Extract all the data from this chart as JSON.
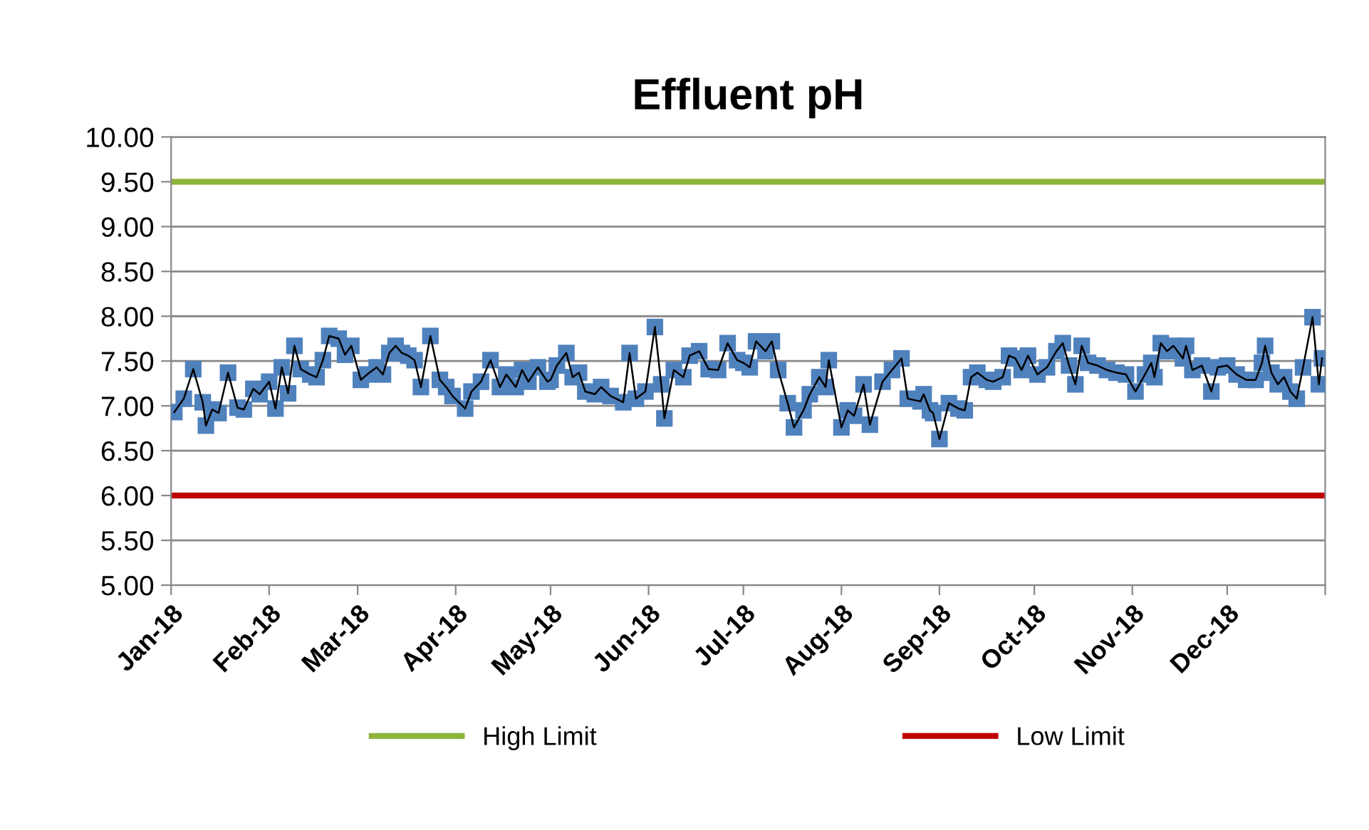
{
  "chart_data": {
    "type": "line",
    "title": "Effluent pH",
    "x": [
      "2018-01-02",
      "2018-01-05",
      "2018-01-08",
      "2018-01-11",
      "2018-01-12",
      "2018-01-14",
      "2018-01-16",
      "2018-01-19",
      "2018-01-22",
      "2018-01-24",
      "2018-01-27",
      "2018-01-29",
      "2018-02-01",
      "2018-02-03",
      "2018-02-05",
      "2018-02-07",
      "2018-02-09",
      "2018-02-11",
      "2018-02-14",
      "2018-02-16",
      "2018-02-18",
      "2018-02-20",
      "2018-02-23",
      "2018-02-25",
      "2018-02-27",
      "2018-03-02",
      "2018-03-04",
      "2018-03-07",
      "2018-03-09",
      "2018-03-11",
      "2018-03-13",
      "2018-03-15",
      "2018-03-17",
      "2018-03-19",
      "2018-03-21",
      "2018-03-24",
      "2018-03-27",
      "2018-03-29",
      "2018-03-31",
      "2018-04-04",
      "2018-04-06",
      "2018-04-09",
      "2018-04-12",
      "2018-04-15",
      "2018-04-17",
      "2018-04-20",
      "2018-04-22",
      "2018-04-24",
      "2018-04-27",
      "2018-04-30",
      "2018-05-01",
      "2018-05-03",
      "2018-05-06",
      "2018-05-08",
      "2018-05-10",
      "2018-05-12",
      "2018-05-15",
      "2018-05-17",
      "2018-05-20",
      "2018-05-24",
      "2018-05-26",
      "2018-05-28",
      "2018-05-31",
      "2018-06-03",
      "2018-06-05",
      "2018-06-06",
      "2018-06-09",
      "2018-06-12",
      "2018-06-14",
      "2018-06-17",
      "2018-06-20",
      "2018-06-23",
      "2018-06-26",
      "2018-06-29",
      "2018-07-01",
      "2018-07-03",
      "2018-07-05",
      "2018-07-08",
      "2018-07-10",
      "2018-07-12",
      "2018-07-15",
      "2018-07-17",
      "2018-07-20",
      "2018-07-22",
      "2018-07-25",
      "2018-07-27",
      "2018-07-28",
      "2018-08-01",
      "2018-08-03",
      "2018-08-05",
      "2018-08-08",
      "2018-08-10",
      "2018-08-14",
      "2018-08-17",
      "2018-08-20",
      "2018-08-22",
      "2018-08-26",
      "2018-08-27",
      "2018-08-29",
      "2018-08-30",
      "2018-09-01",
      "2018-09-04",
      "2018-09-07",
      "2018-09-09",
      "2018-09-11",
      "2018-09-13",
      "2018-09-16",
      "2018-09-18",
      "2018-09-21",
      "2018-09-23",
      "2018-09-25",
      "2018-09-27",
      "2018-09-29",
      "2018-10-02",
      "2018-10-05",
      "2018-10-08",
      "2018-10-10",
      "2018-10-12",
      "2018-10-14",
      "2018-10-16",
      "2018-10-18",
      "2018-10-21",
      "2018-10-24",
      "2018-10-27",
      "2018-10-30",
      "2018-11-02",
      "2018-11-05",
      "2018-11-07",
      "2018-11-08",
      "2018-11-10",
      "2018-11-12",
      "2018-11-14",
      "2018-11-17",
      "2018-11-18",
      "2018-11-20",
      "2018-11-23",
      "2018-11-26",
      "2018-11-28",
      "2018-12-01",
      "2018-12-04",
      "2018-12-07",
      "2018-12-10",
      "2018-12-12",
      "2018-12-13",
      "2018-12-15",
      "2018-12-17",
      "2018-12-19",
      "2018-12-21",
      "2018-12-23",
      "2018-12-25",
      "2018-12-28",
      "2018-12-30",
      "2018-12-31"
    ],
    "series": [
      {
        "type": "scatter",
        "color": "#4f81bd",
        "marker": "square",
        "values": [
          6.93,
          7.08,
          7.41,
          7.04,
          6.78,
          6.96,
          6.92,
          7.37,
          6.98,
          6.96,
          7.19,
          7.13,
          7.27,
          6.97,
          7.43,
          7.14,
          7.67,
          7.41,
          7.35,
          7.32,
          7.51,
          7.78,
          7.75,
          7.57,
          7.67,
          7.29,
          7.35,
          7.43,
          7.35,
          7.59,
          7.67,
          7.59,
          7.56,
          7.51,
          7.21,
          7.78,
          7.29,
          7.21,
          7.11,
          6.97,
          7.16,
          7.27,
          7.51,
          7.21,
          7.35,
          7.21,
          7.4,
          7.27,
          7.43,
          7.27,
          7.29,
          7.45,
          7.59,
          7.32,
          7.37,
          7.16,
          7.13,
          7.21,
          7.11,
          7.04,
          7.59,
          7.08,
          7.16,
          7.88,
          7.24,
          6.86,
          7.4,
          7.32,
          7.56,
          7.61,
          7.41,
          7.4,
          7.7,
          7.51,
          7.48,
          7.43,
          7.72,
          7.61,
          7.72,
          7.4,
          7.03,
          6.76,
          6.95,
          7.13,
          7.32,
          7.21,
          7.51,
          6.76,
          6.95,
          6.89,
          7.24,
          6.79,
          7.27,
          7.4,
          7.53,
          7.08,
          7.05,
          7.13,
          6.95,
          6.92,
          6.63,
          7.03,
          6.97,
          6.95,
          7.32,
          7.37,
          7.29,
          7.27,
          7.32,
          7.56,
          7.53,
          7.4,
          7.56,
          7.35,
          7.43,
          7.61,
          7.7,
          7.45,
          7.24,
          7.67,
          7.48,
          7.45,
          7.4,
          7.37,
          7.35,
          7.16,
          7.35,
          7.48,
          7.32,
          7.7,
          7.61,
          7.67,
          7.53,
          7.67,
          7.4,
          7.45,
          7.16,
          7.43,
          7.45,
          7.35,
          7.29,
          7.29,
          7.48,
          7.67,
          7.37,
          7.24,
          7.32,
          7.16,
          7.08,
          7.43,
          7.99,
          7.24,
          7.53
        ]
      },
      {
        "color": "#000000",
        "marker": "none",
        "line_style": "solid",
        "values": [
          6.93,
          7.08,
          7.41,
          7.04,
          6.78,
          6.96,
          6.92,
          7.37,
          6.98,
          6.96,
          7.19,
          7.13,
          7.27,
          6.97,
          7.43,
          7.14,
          7.67,
          7.41,
          7.35,
          7.32,
          7.51,
          7.78,
          7.75,
          7.57,
          7.67,
          7.29,
          7.35,
          7.43,
          7.35,
          7.59,
          7.67,
          7.59,
          7.56,
          7.51,
          7.21,
          7.78,
          7.29,
          7.21,
          7.11,
          6.97,
          7.16,
          7.27,
          7.51,
          7.21,
          7.35,
          7.21,
          7.4,
          7.27,
          7.43,
          7.27,
          7.29,
          7.45,
          7.59,
          7.32,
          7.37,
          7.16,
          7.13,
          7.21,
          7.11,
          7.04,
          7.59,
          7.08,
          7.16,
          7.88,
          7.24,
          6.86,
          7.4,
          7.32,
          7.56,
          7.61,
          7.41,
          7.4,
          7.7,
          7.51,
          7.48,
          7.43,
          7.72,
          7.61,
          7.72,
          7.4,
          7.03,
          6.76,
          6.95,
          7.13,
          7.32,
          7.21,
          7.51,
          6.76,
          6.95,
          6.89,
          7.24,
          6.79,
          7.27,
          7.4,
          7.53,
          7.08,
          7.05,
          7.13,
          6.95,
          6.92,
          6.63,
          7.03,
          6.97,
          6.95,
          7.32,
          7.37,
          7.29,
          7.27,
          7.32,
          7.56,
          7.53,
          7.4,
          7.56,
          7.35,
          7.43,
          7.61,
          7.7,
          7.45,
          7.24,
          7.67,
          7.48,
          7.45,
          7.4,
          7.37,
          7.35,
          7.16,
          7.35,
          7.48,
          7.32,
          7.7,
          7.61,
          7.67,
          7.53,
          7.67,
          7.4,
          7.45,
          7.16,
          7.43,
          7.45,
          7.35,
          7.29,
          7.29,
          7.48,
          7.67,
          7.37,
          7.24,
          7.32,
          7.16,
          7.08,
          7.43,
          7.99,
          7.24,
          7.53
        ]
      }
    ],
    "ref_lines": [
      {
        "axis": "y",
        "value": 9.5,
        "label": "High Limit",
        "color": "#8db33b"
      },
      {
        "axis": "y",
        "value": 6.0,
        "label": "Low Limit",
        "color": "#c00000"
      }
    ],
    "xlim": [
      "2018-01-01",
      "2019-01-01"
    ],
    "xticks": [
      {
        "value": "2018-01-01",
        "label": "Jan-18"
      },
      {
        "value": "2018-02-01",
        "label": "Feb-18"
      },
      {
        "value": "2018-03-01",
        "label": "Mar-18"
      },
      {
        "value": "2018-04-01",
        "label": "Apr-18"
      },
      {
        "value": "2018-05-01",
        "label": "May-18"
      },
      {
        "value": "2018-06-01",
        "label": "Jun-18"
      },
      {
        "value": "2018-07-01",
        "label": "Jul-18"
      },
      {
        "value": "2018-08-01",
        "label": "Aug-18"
      },
      {
        "value": "2018-09-01",
        "label": "Sep-18"
      },
      {
        "value": "2018-10-01",
        "label": "Oct-18"
      },
      {
        "value": "2018-11-01",
        "label": "Nov-18"
      },
      {
        "value": "2018-12-01",
        "label": "Dec-18"
      },
      {
        "value": "2019-01-01",
        "label": null
      }
    ],
    "ylim": [
      5,
      10
    ],
    "yticks": [
      {
        "value": 5,
        "label": "5.00"
      },
      {
        "value": 5.5,
        "label": "5.50"
      },
      {
        "value": 6,
        "label": "6.00"
      },
      {
        "value": 6.5,
        "label": "6.50"
      },
      {
        "value": 7,
        "label": "7.00"
      },
      {
        "value": 7.5,
        "label": "7.50"
      },
      {
        "value": 8,
        "label": "8.00"
      },
      {
        "value": 8.5,
        "label": "8.50"
      },
      {
        "value": 9,
        "label": "9.00"
      },
      {
        "value": 9.5,
        "label": "9.50"
      },
      {
        "value": 10,
        "label": "10.00"
      }
    ],
    "grid": "y",
    "legend": "bottom"
  }
}
